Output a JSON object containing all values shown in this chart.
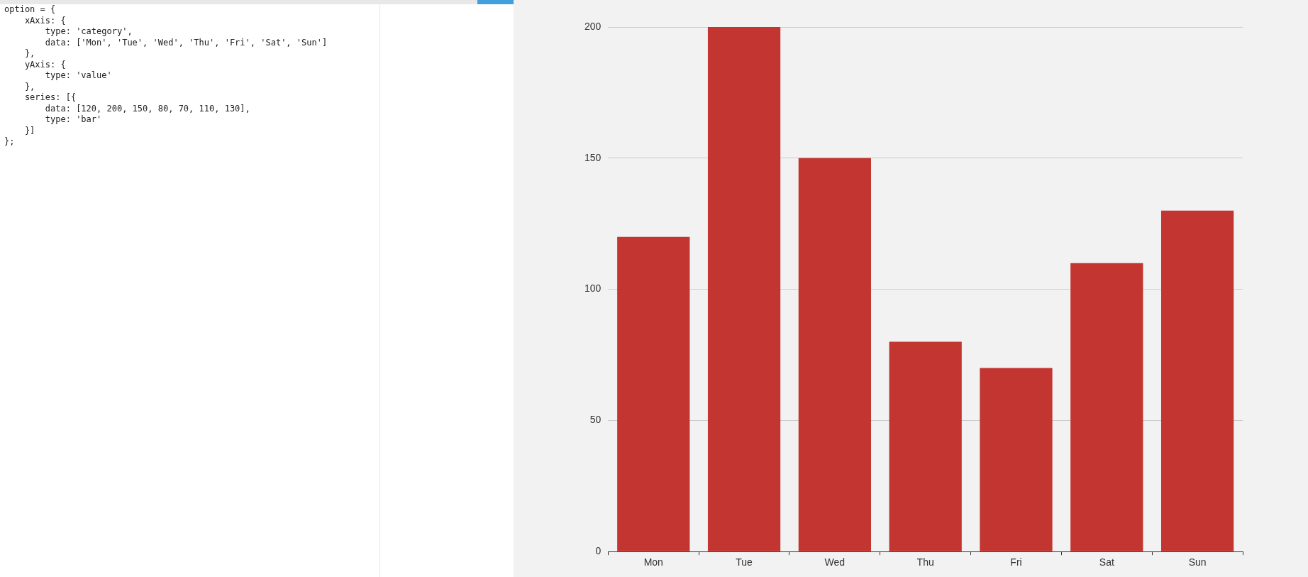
{
  "chart_data": [
    {
      "type": "other",
      "annotations": [
        "option = {",
        "    xAxis: {",
        "        type: 'category',",
        "        data: ['Mon', 'Tue', 'Wed', 'Thu', 'Fri', 'Sat', 'Sun']",
        "    },",
        "    yAxis: {",
        "        type: 'value'",
        "    },",
        "    series: [{",
        "        data: [120, 200, 150, 80, 70, 110, 130],",
        "        type: 'bar'",
        "    }]",
        "};"
      ]
    },
    {
      "type": "bar",
      "categories": [
        "Mon",
        "Tue",
        "Wed",
        "Thu",
        "Fri",
        "Sat",
        "Sun"
      ],
      "values": [
        120,
        200,
        150,
        80,
        70,
        110,
        130
      ],
      "color": "#c23531",
      "ylim": [
        0,
        200
      ],
      "yticks": [
        0,
        50,
        100,
        150,
        200
      ],
      "grid": "y",
      "legend": false
    }
  ]
}
